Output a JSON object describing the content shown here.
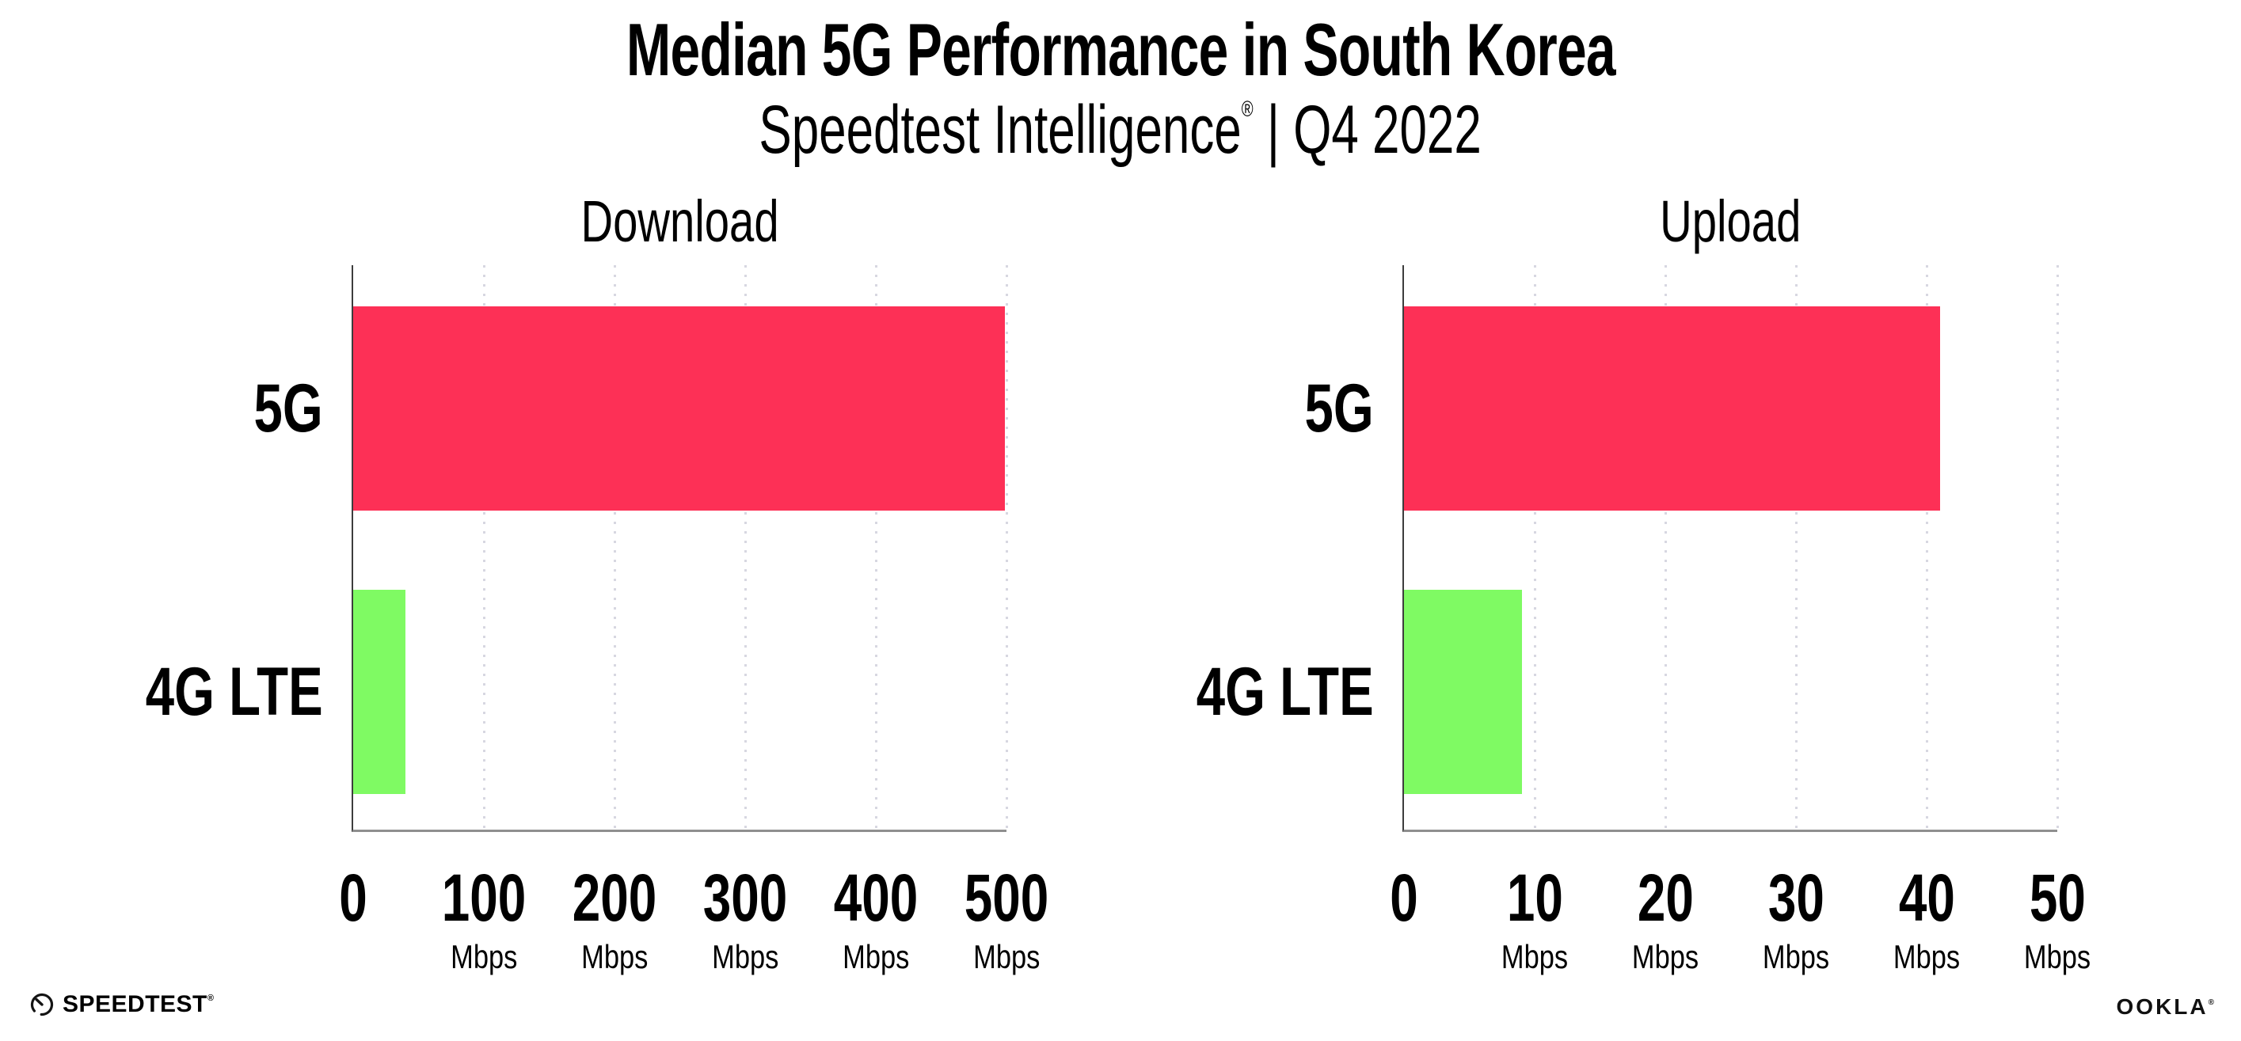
{
  "header": {
    "title": "Median 5G Performance in South Korea",
    "subtitle_brand": "Speedtest Intelligence",
    "subtitle_registered": "®",
    "subtitle_separator": "|",
    "subtitle_period": "Q4 2022"
  },
  "colors": {
    "bar_5g": "#fd3056",
    "bar_4g_lte": "#7ffa63",
    "gridline": "#d7d7e1",
    "y_axis": "#3d3d3d",
    "x_axis": "#8f8f8f"
  },
  "chart_data": [
    {
      "type": "bar",
      "orientation": "horizontal",
      "title": "Download",
      "categories": [
        "5G",
        "4G LTE"
      ],
      "values": [
        499,
        40
      ],
      "unit": "Mbps",
      "xlabel": "Mbps",
      "xlim": [
        0,
        500
      ],
      "xticks": [
        0,
        100,
        200,
        300,
        400,
        500
      ],
      "grid": "vertical-dotted",
      "legend": "none",
      "bar_colors": [
        "#fd3056",
        "#7ffa63"
      ]
    },
    {
      "type": "bar",
      "orientation": "horizontal",
      "title": "Upload",
      "categories": [
        "5G",
        "4G LTE"
      ],
      "values": [
        41,
        9
      ],
      "unit": "Mbps",
      "xlabel": "Mbps",
      "xlim": [
        0,
        50
      ],
      "xticks": [
        0,
        10,
        20,
        30,
        40,
        50
      ],
      "grid": "vertical-dotted",
      "legend": "none",
      "bar_colors": [
        "#fd3056",
        "#7ffa63"
      ]
    }
  ],
  "footer": {
    "speedtest_wordmark": "SPEEDTEST",
    "speedtest_registered": "®",
    "ookla_wordmark": "OOKLA",
    "ookla_registered": "®"
  }
}
